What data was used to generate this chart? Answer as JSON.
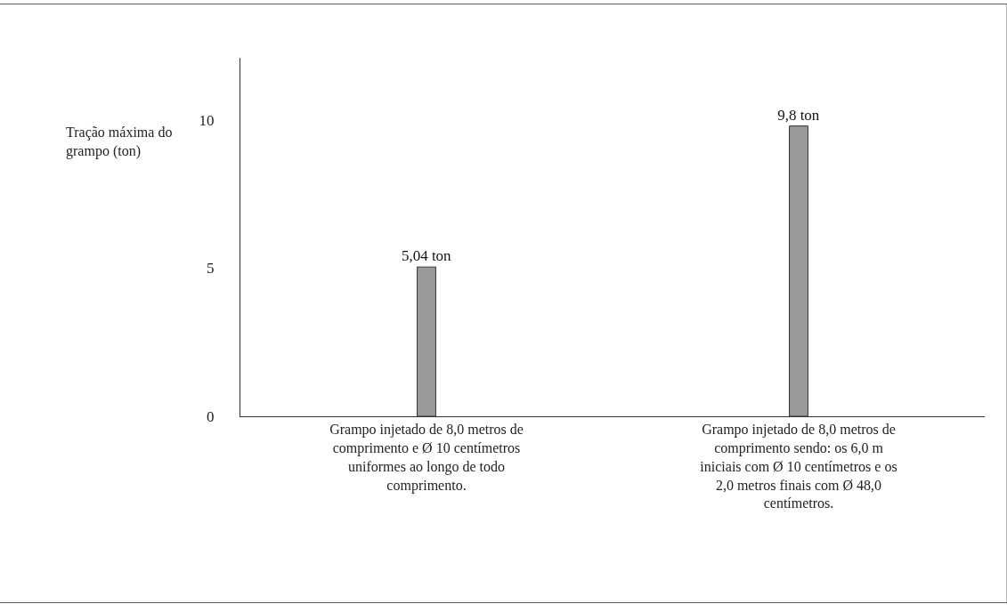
{
  "chart_data": {
    "type": "bar",
    "ylabel": "Tração máxima do grampo (ton)",
    "categories": [
      "Grampo injetado de 8,0 metros de comprimento e Ø 10 centímetros uniformes ao longo de todo comprimento.",
      "Grampo injetado de 8,0 metros de comprimento sendo: os 6,0 m iniciais com Ø 10 centímetros e os 2,0 metros finais com Ø 48,0 centímetros."
    ],
    "values": [
      5.04,
      9.8
    ],
    "value_labels": [
      "5,04 ton",
      "9,8 ton"
    ],
    "color": "#999999",
    "ylim": [
      0,
      12.1
    ],
    "yticks": [
      0,
      5,
      10
    ],
    "legend": false
  }
}
